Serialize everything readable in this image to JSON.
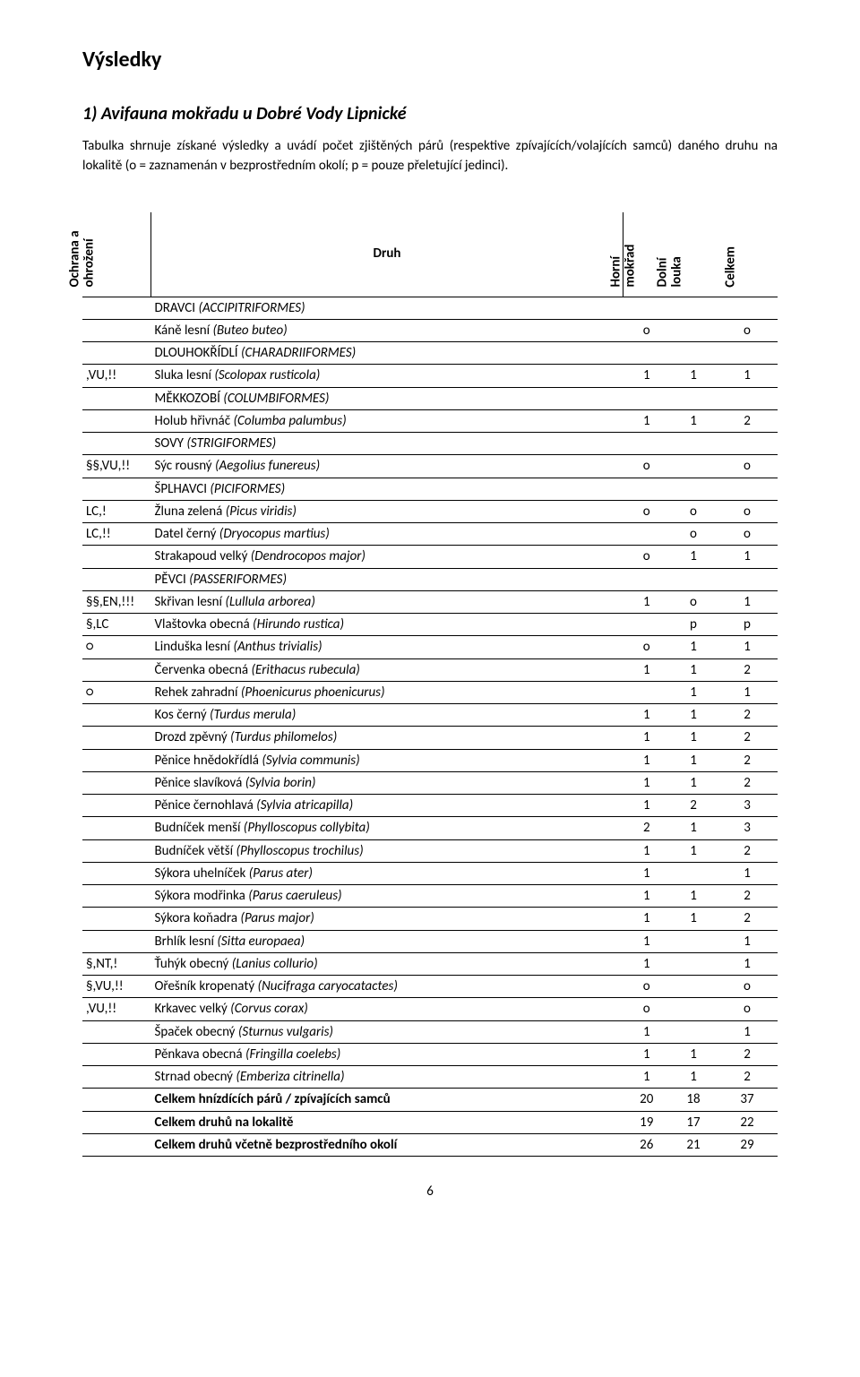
{
  "title": "Výsledky",
  "section_heading": "1) Avifauna mokřadu u Dobré Vody Lipnické",
  "intro": "Tabulka shrnuje získané výsledky a uvádí počet zjištěných párů (respektive zpívajících/volajících samců) daného druhu na lokalitě (o = zaznamenán v bezprostředním okolí; p = pouze přeletující jedinci).",
  "page_number": "6",
  "columns": {
    "ochrana": [
      "Ochrana a",
      "ohrožení"
    ],
    "druh": "Druh",
    "horni": [
      "Horní",
      "mokřad"
    ],
    "dolni": [
      "Dolní",
      "louka"
    ],
    "celkem": "Celkem"
  },
  "rows": [
    {
      "type": "section",
      "druh_plain": "DRAVCI ",
      "druh_lat": "(ACCIPITRIFORMES)"
    },
    {
      "ochrana": "",
      "druh_plain": "Káně lesní ",
      "druh_lat": "(Buteo buteo)",
      "h": "o",
      "d": "",
      "c": "o"
    },
    {
      "type": "section",
      "druh_plain": "DLOUHOKŘÍDLÍ ",
      "druh_lat": "(CHARADRIIFORMES)"
    },
    {
      "ochrana": ",VU,!!",
      "druh_plain": "Sluka lesní ",
      "druh_lat": "(Scolopax rusticola)",
      "h": "1",
      "d": "1",
      "c": "1"
    },
    {
      "type": "section",
      "druh_plain": "MĚKKOZOBÍ ",
      "druh_lat": "(COLUMBIFORMES)"
    },
    {
      "ochrana": "",
      "druh_plain": "Holub hřivnáč ",
      "druh_lat": "(Columba palumbus)",
      "h": "1",
      "d": "1",
      "c": "2"
    },
    {
      "type": "section",
      "druh_plain": "SOVY ",
      "druh_lat": "(STRIGIFORMES)"
    },
    {
      "ochrana": "§§,VU,!!",
      "druh_plain": "Sýc rousný ",
      "druh_lat": "(Aegolius funereus)",
      "h": "o",
      "d": "",
      "c": "o"
    },
    {
      "type": "section",
      "druh_plain": "ŠPLHAVCI ",
      "druh_lat": "(PICIFORMES)"
    },
    {
      "ochrana": "LC,!",
      "druh_plain": "Žluna zelená ",
      "druh_lat": "(Picus viridis)",
      "h": "o",
      "d": "o",
      "c": "o"
    },
    {
      "ochrana": "LC,!!",
      "druh_plain": "Datel černý ",
      "druh_lat": "(Dryocopus martius)",
      "h": "",
      "d": "o",
      "c": "o"
    },
    {
      "ochrana": "",
      "druh_plain": "Strakapoud velký ",
      "druh_lat": "(Dendrocopos major)",
      "h": "o",
      "d": "1",
      "c": "1"
    },
    {
      "type": "section",
      "druh_plain": "PĚVCI ",
      "druh_lat": "(PASSERIFORMES)"
    },
    {
      "ochrana": "§§,EN,!!!",
      "druh_plain": "Skřivan lesní ",
      "druh_lat": "(Lullula arborea)",
      "h": "1",
      "d": "o",
      "c": "1"
    },
    {
      "ochrana": "§,LC",
      "druh_plain": "Vlaštovka obecná ",
      "druh_lat": "(Hirundo rustica)",
      "h": "",
      "d": "p",
      "c": "p"
    },
    {
      "ochrana": "○",
      "druh_plain": "Linduška lesní ",
      "druh_lat": "(Anthus trivialis)",
      "h": "o",
      "d": "1",
      "c": "1"
    },
    {
      "ochrana": "",
      "druh_plain": "Červenka obecná ",
      "druh_lat": "(Erithacus rubecula)",
      "h": "1",
      "d": "1",
      "c": "2"
    },
    {
      "ochrana": "○",
      "druh_plain": "Rehek zahradní ",
      "druh_lat": "(Phoenicurus phoenicurus)",
      "h": "",
      "d": "1",
      "c": "1"
    },
    {
      "ochrana": "",
      "druh_plain": "Kos černý ",
      "druh_lat": "(Turdus merula)",
      "h": "1",
      "d": "1",
      "c": "2"
    },
    {
      "ochrana": "",
      "druh_plain": "Drozd zpěvný ",
      "druh_lat": "(Turdus philomelos)",
      "h": "1",
      "d": "1",
      "c": "2"
    },
    {
      "ochrana": "",
      "druh_plain": "Pěnice hnědokřídlá ",
      "druh_lat": "(Sylvia communis)",
      "h": "1",
      "d": "1",
      "c": "2"
    },
    {
      "ochrana": "",
      "druh_plain": "Pěnice slavíková ",
      "druh_lat": "(Sylvia borin)",
      "h": "1",
      "d": "1",
      "c": "2"
    },
    {
      "ochrana": "",
      "druh_plain": "Pěnice černohlavá ",
      "druh_lat": "(Sylvia atricapilla)",
      "h": "1",
      "d": "2",
      "c": "3"
    },
    {
      "ochrana": "",
      "druh_plain": "Budníček menší ",
      "druh_lat": "(Phylloscopus collybita)",
      "h": "2",
      "d": "1",
      "c": "3"
    },
    {
      "ochrana": "",
      "druh_plain": "Budníček větší ",
      "druh_lat": "(Phylloscopus trochilus)",
      "h": "1",
      "d": "1",
      "c": "2"
    },
    {
      "ochrana": "",
      "druh_plain": "Sýkora uhelníček ",
      "druh_lat": "(Parus ater)",
      "h": "1",
      "d": "",
      "c": "1"
    },
    {
      "ochrana": "",
      "druh_plain": "Sýkora modřinka ",
      "druh_lat": "(Parus caeruleus)",
      "h": "1",
      "d": "1",
      "c": "2"
    },
    {
      "ochrana": "",
      "druh_plain": "Sýkora koňadra ",
      "druh_lat": "(Parus major)",
      "h": "1",
      "d": "1",
      "c": "2"
    },
    {
      "ochrana": "",
      "druh_plain": "Brhlík lesní ",
      "druh_lat": "(Sitta europaea)",
      "h": "1",
      "d": "",
      "c": "1"
    },
    {
      "ochrana": "§,NT,!",
      "druh_plain": "Ťuhýk obecný ",
      "druh_lat": "(Lanius collurio)",
      "h": "1",
      "d": "",
      "c": "1"
    },
    {
      "ochrana": "§,VU,!!",
      "druh_plain": "Ořešník kropenatý ",
      "druh_lat": "(Nucifraga caryocatactes)",
      "h": "o",
      "d": "",
      "c": "o"
    },
    {
      "ochrana": ",VU,!!",
      "druh_plain": "Krkavec velký ",
      "druh_lat": "(Corvus corax)",
      "h": "o",
      "d": "",
      "c": "o"
    },
    {
      "ochrana": "",
      "druh_plain": "Špaček obecný ",
      "druh_lat": "(Sturnus vulgaris)",
      "h": "1",
      "d": "",
      "c": "1"
    },
    {
      "ochrana": "",
      "druh_plain": "Pěnkava obecná ",
      "druh_lat": "(Fringilla coelebs)",
      "h": "1",
      "d": "1",
      "c": "2"
    },
    {
      "ochrana": "",
      "druh_plain": "Strnad obecný ",
      "druh_lat": "(Emberiza citrinella)",
      "h": "1",
      "d": "1",
      "c": "2"
    }
  ],
  "summary": [
    {
      "label": "Celkem hnízdících párů / zpívajících samců",
      "h": "20",
      "d": "18",
      "c": "37"
    },
    {
      "label": "Celkem druhů na lokalitě",
      "h": "19",
      "d": "17",
      "c": "22"
    },
    {
      "label": "Celkem druhů včetně bezprostředního okolí",
      "h": "26",
      "d": "21",
      "c": "29"
    }
  ]
}
